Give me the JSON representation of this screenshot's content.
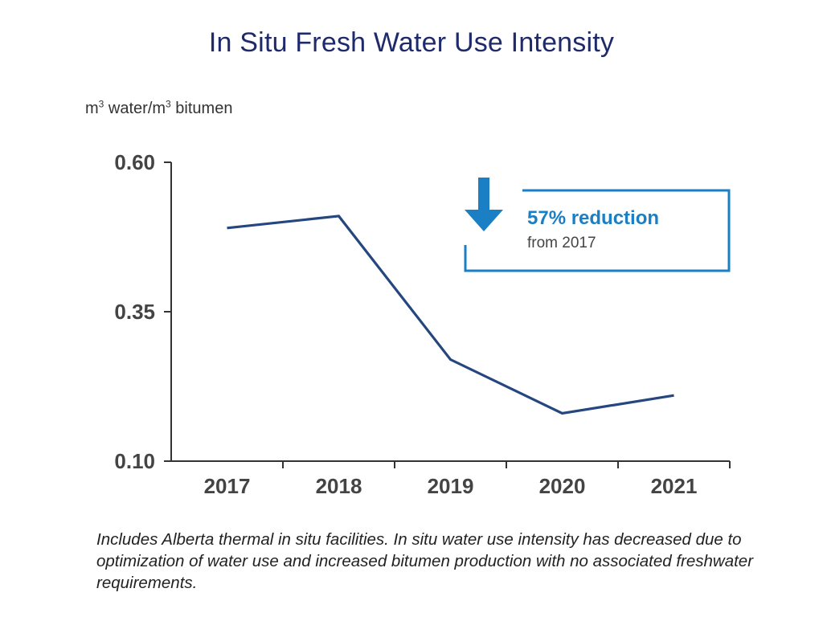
{
  "chart_data": {
    "type": "line",
    "title": "In Situ Fresh Water Use Intensity",
    "ylabel_prefix": "m",
    "ylabel_exp1": "3",
    "ylabel_mid": " water/m",
    "ylabel_exp2": "3",
    "ylabel_suffix": " bitumen",
    "categories": [
      "2017",
      "2018",
      "2019",
      "2020",
      "2021"
    ],
    "values": [
      0.49,
      0.51,
      0.27,
      0.18,
      0.21
    ],
    "ylim": [
      0.1,
      0.6
    ],
    "yticks": [
      "0.10",
      "0.35",
      "0.60"
    ],
    "ytick_values": [
      0.1,
      0.35,
      0.6
    ],
    "series_color": "#26467f",
    "grid": false,
    "annotation": {
      "headline": "57% reduction",
      "subtext": "from 2017",
      "color": "#1a7fc4"
    }
  },
  "footnote": "Includes Alberta thermal in situ facilities. In situ water use intensity has decreased due to optimization of water use and increased bitumen production with no associated freshwater requirements."
}
